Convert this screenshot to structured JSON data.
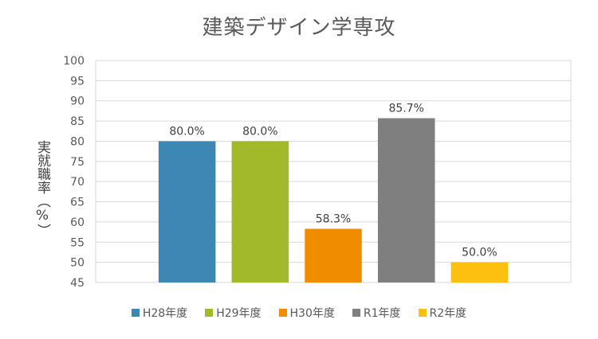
{
  "chart_data": {
    "type": "bar",
    "title": "建築デザイン学専攻",
    "ylabel": "実就職率（%）",
    "xlabel": "",
    "ylim": [
      45,
      100
    ],
    "ytick_step": 5,
    "grid": true,
    "legend_position": "bottom",
    "categories": [
      "H28年度",
      "H29年度",
      "H30年度",
      "R1年度",
      "R2年度"
    ],
    "values": [
      80.0,
      80.0,
      58.3,
      85.7,
      50.0
    ],
    "data_labels": [
      "80.0%",
      "80.0%",
      "58.3%",
      "85.7%",
      "50.0%"
    ],
    "colors": [
      "#3d87b4",
      "#a2b92a",
      "#f08c00",
      "#7f7f7f",
      "#fdc011"
    ]
  }
}
